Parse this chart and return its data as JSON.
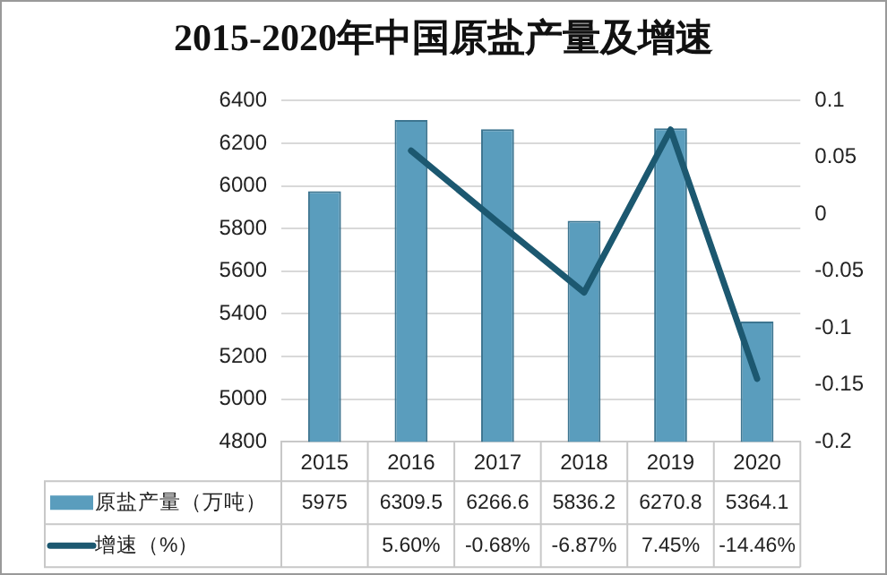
{
  "chart_data": {
    "type": "bar",
    "title": "2015-2020年中国原盐产量及增速",
    "categories": [
      "2015",
      "2016",
      "2017",
      "2018",
      "2019",
      "2020"
    ],
    "series": [
      {
        "name": "原盐产量（万吨）",
        "color": "#5a9dbd",
        "values": [
          5975,
          6309.5,
          6266.6,
          5836.2,
          6270.8,
          5364.1
        ],
        "value_labels": [
          "5975",
          "6309.5",
          "6266.6",
          "5836.2",
          "6270.8",
          "5364.1"
        ]
      },
      {
        "name": "增速（%）",
        "type": "line",
        "axis": "y2",
        "color": "#1c5870",
        "values": [
          null,
          0.056,
          -0.0068,
          -0.0687,
          0.0745,
          -0.1446
        ],
        "value_labels": [
          null,
          "5.60%",
          "-0.68%",
          "-6.87%",
          "7.45%",
          "-14.46%"
        ]
      }
    ],
    "ylim": [
      4800,
      6400
    ],
    "yticks": [
      4800,
      5000,
      5200,
      5400,
      5600,
      5800,
      6000,
      6200,
      6400
    ],
    "y2lim": [
      -0.2,
      0.1
    ],
    "y2ticks": [
      -0.2,
      -0.15,
      -0.1,
      -0.05,
      0,
      0.05,
      0.1
    ],
    "grid": "y",
    "legend": "bottom",
    "marker": "none",
    "line_style": "solid"
  }
}
